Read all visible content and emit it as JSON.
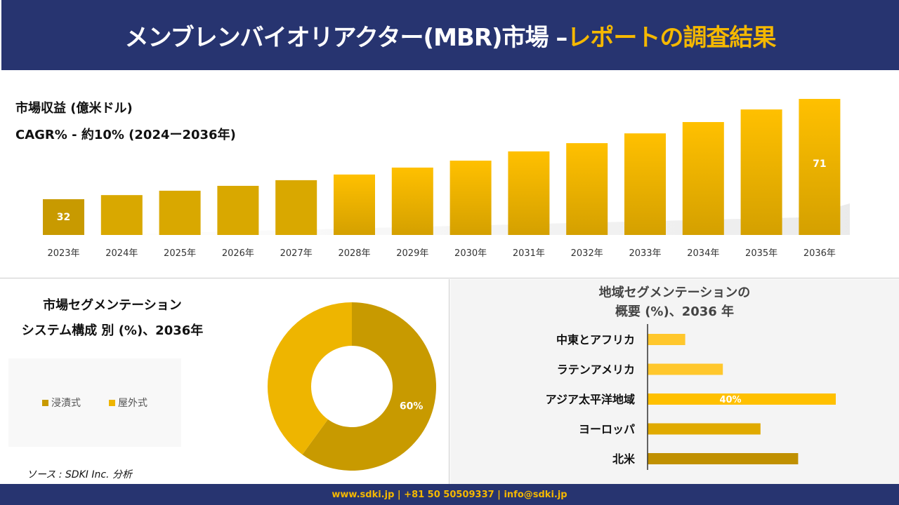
{
  "header": {
    "title_main": "メンブレンバイオリアクター(MBR)市場 –",
    "title_accent": "レポートの調査結果"
  },
  "revenue": {
    "title": "市場収益 (億米ドル)",
    "cagr": "CAGR% - 約10% (2024ー2036年)"
  },
  "segment": {
    "title_line1": "市場セグメンテーション",
    "title_line2": "システム構成 別 (%)、2036年"
  },
  "region": {
    "title_line1": "地域セグメンテーションの",
    "title_line2": "概要 (%)、2036 年"
  },
  "source": "ソース : SDKI Inc. 分析",
  "footer": "www.sdki.jp | +81 50 50509337 | info@sdki.jp",
  "colors": {
    "navy": "#273470",
    "accent": "#F5B800",
    "dark_gold": "#C89A00",
    "light_gold": "#EEB500"
  },
  "chart_data": [
    {
      "type": "bar",
      "title": "市場収益 (億米ドル)",
      "categories": [
        "2023年",
        "2024年",
        "2025年",
        "2026年",
        "2027年",
        "2028年",
        "2029年",
        "2030年",
        "2031年",
        "2032年",
        "2033年",
        "2034年",
        "2035年",
        "2036年"
      ],
      "values": [
        32,
        33.6,
        35.3,
        37.2,
        39.4,
        41.6,
        44.3,
        47,
        50.6,
        53.8,
        57.6,
        62,
        66.9,
        71
      ],
      "data_labels": {
        "0": "32",
        "13": "71"
      }
    },
    {
      "type": "pie",
      "subtype": "donut",
      "title": "システム構成 別 (%)、2036年",
      "categories": [
        "浸漬式",
        "屋外式"
      ],
      "values": [
        60,
        40
      ],
      "data_labels": [
        "60%",
        ""
      ],
      "colors": [
        "#C89A00",
        "#EEB500"
      ],
      "legend": "left"
    },
    {
      "type": "bar",
      "orientation": "horizontal",
      "title": "地域セグメンテーションの概要 (%)、2036 年",
      "categories": [
        "中東とアフリカ",
        "ラテンアメリカ",
        "アジア太平洋地域",
        "ヨーロッパ",
        "北米"
      ],
      "values": [
        8,
        16,
        40,
        24,
        32
      ],
      "data_labels": [
        "",
        "",
        "40%",
        "",
        ""
      ],
      "colors": [
        "#FFC72C",
        "#FFC72C",
        "#FFC000",
        "#E0AA00",
        "#C09000"
      ]
    }
  ]
}
